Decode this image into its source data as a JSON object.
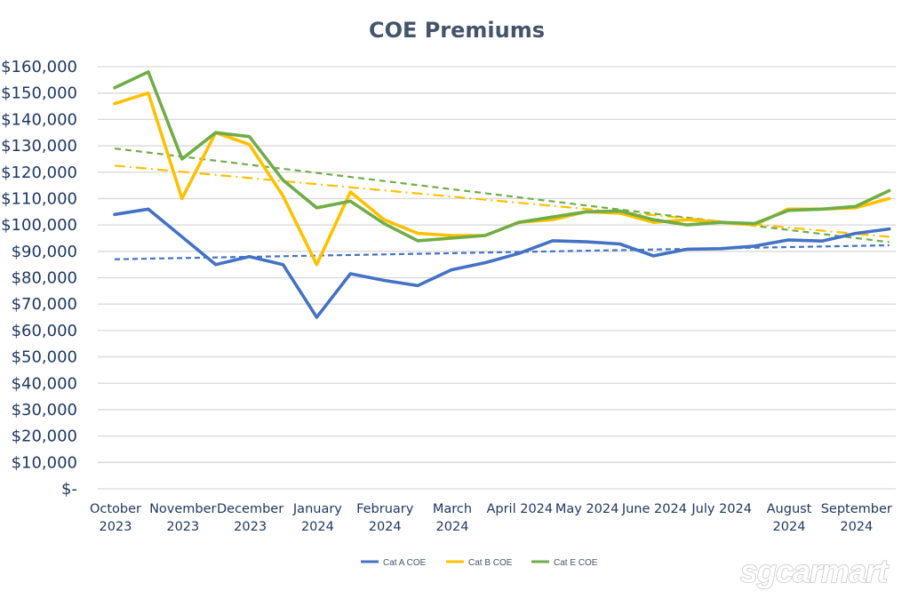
{
  "chart_data": {
    "type": "line",
    "title": "COE Premiums",
    "xlabel": "",
    "ylabel": "",
    "ylim": [
      0,
      160000
    ],
    "ytick_step": 10000,
    "yticks": [
      "$-",
      "$10,000",
      "$20,000",
      "$30,000",
      "$40,000",
      "$50,000",
      "$60,000",
      "$70,000",
      "$80,000",
      "$90,000",
      "$100,000",
      "$110,000",
      "$120,000",
      "$130,000",
      "$140,000",
      "$150,000",
      "$160,000"
    ],
    "xtick_labels": [
      [
        "October",
        "2023"
      ],
      [
        "November",
        "2023"
      ],
      [
        "December",
        "2023"
      ],
      [
        "January",
        "2024"
      ],
      [
        "February",
        "2024"
      ],
      [
        "March",
        "2024"
      ],
      [
        "April 2024"
      ],
      [
        "May 2024"
      ],
      [
        "June 2024"
      ],
      [
        "July 2024"
      ],
      [
        "August",
        "2024"
      ],
      [
        "September",
        "2024"
      ]
    ],
    "points_per_month": 2,
    "grid": true,
    "legend_position": "bottom",
    "series": [
      {
        "name": "Cat A COE",
        "color": "#4472c4",
        "values": [
          104000,
          106000,
          95500,
          85000,
          88000,
          85000,
          65000,
          81500,
          79000,
          77000,
          83000,
          85700,
          89200,
          94000,
          93600,
          92800,
          88300,
          90800,
          91000,
          92000,
          94300,
          93900,
          96800,
          98500
        ],
        "trend": [
          87000,
          92300
        ]
      },
      {
        "name": "Cat B COE",
        "color": "#ffc000",
        "values": [
          146000,
          150000,
          110000,
          135000,
          130500,
          111000,
          85000,
          112500,
          102000,
          96800,
          96000,
          96000,
          101000,
          102000,
          105000,
          104500,
          101000,
          102000,
          101000,
          100000,
          106000,
          106000,
          106500,
          110000
        ],
        "trend": [
          122500,
          95500
        ]
      },
      {
        "name": "Cat E COE",
        "color": "#70ad47",
        "values": [
          152000,
          158000,
          125000,
          135000,
          133500,
          117000,
          106500,
          109000,
          100500,
          94000,
          95000,
          96000,
          101000,
          103000,
          105000,
          105300,
          102000,
          100000,
          101000,
          100500,
          105500,
          106000,
          107000,
          113000
        ],
        "trend": [
          129000,
          93500
        ]
      }
    ]
  },
  "watermark": "sgcarmart"
}
